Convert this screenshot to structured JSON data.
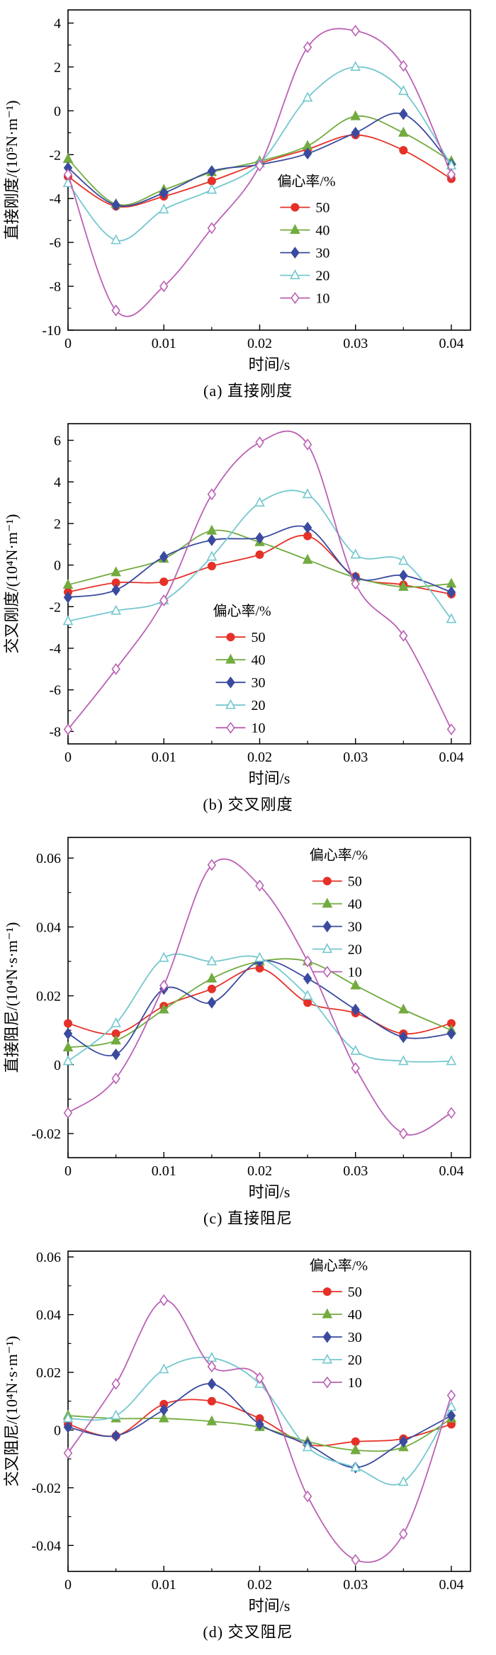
{
  "page": {
    "background": "#ffffff",
    "text_color": "#000000"
  },
  "legend_title": "偏心率/%",
  "series_colors": {
    "50": "#e53128",
    "40": "#72ab3f",
    "30": "#3a4a9f",
    "20": "#74c8cf",
    "10": "#bb61b4"
  },
  "chart_data": [
    {
      "type": "line",
      "caption": "(a) 直接刚度",
      "xlabel": "时间/s",
      "ylabel": "直接刚度/(10⁵N·m⁻¹)",
      "xlim": [
        0,
        0.042
      ],
      "ylim": [
        -10,
        4.6
      ],
      "grid": false,
      "xticks": [
        0,
        0.01,
        0.02,
        0.03,
        0.04
      ],
      "xtick_labels": [
        "0",
        "0.01",
        "0.02",
        "0.03",
        "0.04"
      ],
      "yticks": [
        4,
        2,
        0,
        -2,
        -4,
        -6,
        -8,
        -10
      ],
      "ytick_labels": [
        "4",
        "2",
        "0",
        "-2",
        "-4",
        "-6",
        "-8",
        "-10"
      ],
      "x": [
        0,
        0.005,
        0.01,
        0.015,
        0.02,
        0.025,
        0.03,
        0.035,
        0.04
      ],
      "legend": {
        "title": "偏心率/%",
        "fx": 0.52,
        "fy": 0.55
      },
      "series": [
        {
          "name": "50",
          "color": "#e53128",
          "marker": "circle",
          "filled": true,
          "values": [
            -3.0,
            -4.35,
            -3.9,
            -3.2,
            -2.4,
            -1.75,
            -1.1,
            -1.8,
            -3.1
          ]
        },
        {
          "name": "40",
          "color": "#72ab3f",
          "marker": "triangle",
          "filled": true,
          "values": [
            -2.2,
            -4.25,
            -3.6,
            -2.8,
            -2.3,
            -1.6,
            -0.25,
            -1.0,
            -2.3
          ]
        },
        {
          "name": "30",
          "color": "#3a4a9f",
          "marker": "diamond",
          "filled": true,
          "values": [
            -2.6,
            -4.3,
            -3.75,
            -2.75,
            -2.45,
            -1.95,
            -1.0,
            -0.15,
            -2.45
          ]
        },
        {
          "name": "20",
          "color": "#74c8cf",
          "marker": "triangle",
          "filled": false,
          "values": [
            -3.3,
            -5.9,
            -4.5,
            -3.6,
            -2.4,
            0.6,
            2.0,
            0.9,
            -2.5
          ]
        },
        {
          "name": "10",
          "color": "#bb61b4",
          "marker": "diamond",
          "filled": false,
          "values": [
            -2.9,
            -9.1,
            -8.0,
            -5.35,
            -2.5,
            2.9,
            3.65,
            2.05,
            -2.9
          ]
        }
      ]
    },
    {
      "type": "line",
      "caption": "(b) 交叉刚度",
      "xlabel": "时间/s",
      "ylabel": "交叉刚度/(10⁴N·m⁻¹)",
      "xlim": [
        0,
        0.042
      ],
      "ylim": [
        -8.6,
        6.8
      ],
      "grid": false,
      "xticks": [
        0,
        0.01,
        0.02,
        0.03,
        0.04
      ],
      "xtick_labels": [
        "0",
        "0.01",
        "0.02",
        "0.03",
        "0.04"
      ],
      "yticks": [
        6,
        4,
        2,
        0,
        -2,
        -4,
        -6,
        -8
      ],
      "ytick_labels": [
        "6",
        "4",
        "2",
        "0",
        "-2",
        "-4",
        "-6",
        "-8"
      ],
      "x": [
        0,
        0.005,
        0.01,
        0.015,
        0.02,
        0.025,
        0.03,
        0.035,
        0.04
      ],
      "legend": {
        "title": "偏心率/%",
        "fx": 0.36,
        "fy": 0.6
      },
      "series": [
        {
          "name": "50",
          "color": "#e53128",
          "marker": "circle",
          "filled": true,
          "values": [
            -1.3,
            -0.85,
            -0.8,
            -0.05,
            0.5,
            1.4,
            -0.55,
            -0.95,
            -1.4
          ]
        },
        {
          "name": "40",
          "color": "#72ab3f",
          "marker": "triangle",
          "filled": true,
          "values": [
            -0.95,
            -0.35,
            0.3,
            1.65,
            1.1,
            0.25,
            -0.6,
            -1.05,
            -0.9
          ]
        },
        {
          "name": "30",
          "color": "#3a4a9f",
          "marker": "diamond",
          "filled": true,
          "values": [
            -1.55,
            -1.2,
            0.4,
            1.2,
            1.3,
            1.8,
            -0.6,
            -0.5,
            -1.3
          ]
        },
        {
          "name": "20",
          "color": "#74c8cf",
          "marker": "triangle",
          "filled": false,
          "values": [
            -2.7,
            -2.2,
            -1.7,
            0.4,
            3.0,
            3.4,
            0.5,
            0.2,
            -2.6
          ]
        },
        {
          "name": "10",
          "color": "#bb61b4",
          "marker": "diamond",
          "filled": false,
          "values": [
            -7.9,
            -5.0,
            -1.7,
            3.4,
            5.9,
            5.8,
            -0.9,
            -3.4,
            -7.9
          ]
        }
      ]
    },
    {
      "type": "line",
      "caption": "(c) 直接阻尼",
      "xlabel": "时间/s",
      "ylabel": "直接阻尼/(10⁴N·s·m⁻¹)",
      "xlim": [
        0,
        0.042
      ],
      "ylim": [
        -0.027,
        0.066
      ],
      "grid": false,
      "xticks": [
        0,
        0.01,
        0.02,
        0.03,
        0.04
      ],
      "xtick_labels": [
        "0",
        "0.01",
        "0.02",
        "0.03",
        "0.04"
      ],
      "yticks": [
        0.06,
        0.04,
        0.02,
        0,
        -0.02
      ],
      "ytick_labels": [
        "0.06",
        "0.04",
        "0.02",
        "0",
        "-0.02"
      ],
      "x": [
        0,
        0.005,
        0.01,
        0.015,
        0.02,
        0.025,
        0.03,
        0.035,
        0.04
      ],
      "legend": {
        "title": "偏心率/%",
        "fx": 0.6,
        "fy": 0.07
      },
      "series": [
        {
          "name": "50",
          "color": "#e53128",
          "marker": "circle",
          "filled": true,
          "values": [
            0.012,
            0.009,
            0.017,
            0.022,
            0.028,
            0.018,
            0.015,
            0.009,
            0.012
          ]
        },
        {
          "name": "40",
          "color": "#72ab3f",
          "marker": "triangle",
          "filled": true,
          "values": [
            0.005,
            0.007,
            0.016,
            0.025,
            0.03,
            0.03,
            0.023,
            0.016,
            0.01
          ]
        },
        {
          "name": "30",
          "color": "#3a4a9f",
          "marker": "diamond",
          "filled": true,
          "values": [
            0.009,
            0.003,
            0.022,
            0.018,
            0.03,
            0.025,
            0.016,
            0.008,
            0.009
          ]
        },
        {
          "name": "20",
          "color": "#74c8cf",
          "marker": "triangle",
          "filled": false,
          "values": [
            0.001,
            0.012,
            0.031,
            0.03,
            0.031,
            0.02,
            0.004,
            0.001,
            0.001
          ]
        },
        {
          "name": "10",
          "color": "#bb61b4",
          "marker": "diamond",
          "filled": false,
          "values": [
            -0.014,
            -0.004,
            0.023,
            0.058,
            0.052,
            0.03,
            -0.001,
            -0.02,
            -0.014
          ]
        }
      ]
    },
    {
      "type": "line",
      "caption": "(d) 交叉阻尼",
      "xlabel": "时间/s",
      "ylabel": "交叉阻尼/(10⁴N·s·m⁻¹)",
      "xlim": [
        0,
        0.042
      ],
      "ylim": [
        -0.049,
        0.062
      ],
      "grid": false,
      "xticks": [
        0,
        0.01,
        0.02,
        0.03,
        0.04
      ],
      "xtick_labels": [
        "0",
        "0.01",
        "0.02",
        "0.03",
        "0.04"
      ],
      "yticks": [
        0.06,
        0.04,
        0.02,
        0,
        -0.02,
        -0.04
      ],
      "ytick_labels": [
        "0.06",
        "0.04",
        "0.02",
        "0",
        "-0.02",
        "-0.04"
      ],
      "x": [
        0,
        0.005,
        0.01,
        0.015,
        0.02,
        0.025,
        0.03,
        0.035,
        0.04
      ],
      "legend": {
        "title": "偏心率/%",
        "fx": 0.6,
        "fy": 0.06
      },
      "series": [
        {
          "name": "50",
          "color": "#e53128",
          "marker": "circle",
          "filled": true,
          "values": [
            0.002,
            -0.002,
            0.009,
            0.01,
            0.004,
            -0.005,
            -0.004,
            -0.003,
            0.002
          ]
        },
        {
          "name": "40",
          "color": "#72ab3f",
          "marker": "triangle",
          "filled": true,
          "values": [
            0.005,
            0.004,
            0.004,
            0.003,
            0.001,
            -0.004,
            -0.007,
            -0.006,
            0.004
          ]
        },
        {
          "name": "30",
          "color": "#3a4a9f",
          "marker": "diamond",
          "filled": true,
          "values": [
            0.001,
            -0.002,
            0.007,
            0.016,
            0.002,
            -0.005,
            -0.013,
            -0.004,
            0.005
          ]
        },
        {
          "name": "20",
          "color": "#74c8cf",
          "marker": "triangle",
          "filled": false,
          "values": [
            0.004,
            0.005,
            0.021,
            0.025,
            0.016,
            -0.006,
            -0.013,
            -0.018,
            0.008
          ]
        },
        {
          "name": "10",
          "color": "#bb61b4",
          "marker": "diamond",
          "filled": false,
          "values": [
            -0.008,
            0.016,
            0.045,
            0.022,
            0.018,
            -0.023,
            -0.045,
            -0.036,
            0.012
          ]
        }
      ]
    }
  ]
}
